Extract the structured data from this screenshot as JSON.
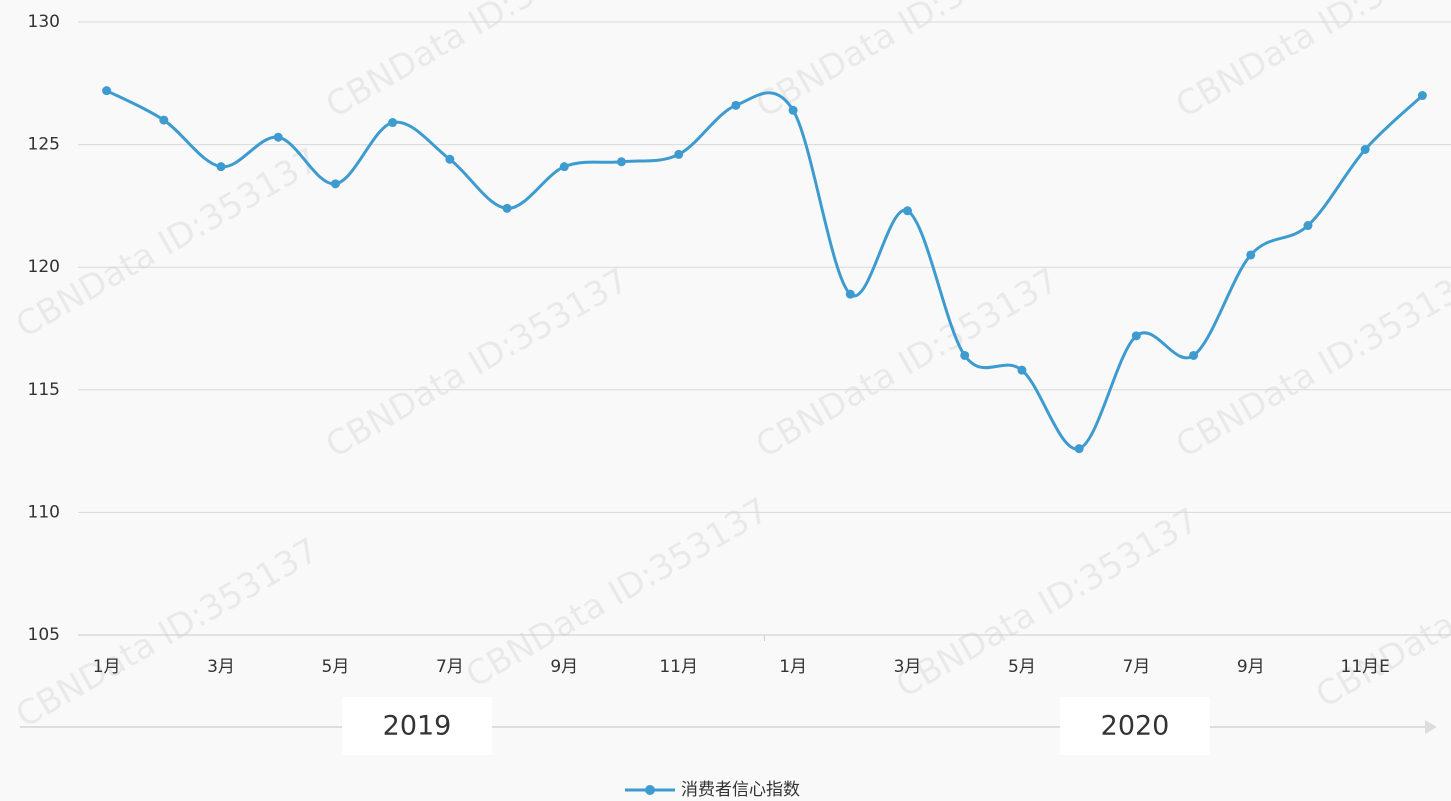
{
  "chart_data": {
    "type": "line",
    "categories": [
      "1月",
      null,
      "3月",
      null,
      "5月",
      null,
      "7月",
      null,
      "9月",
      null,
      "11月",
      null,
      "1月",
      null,
      "3月",
      null,
      "5月",
      null,
      "7月",
      null,
      "9月",
      null,
      "11月E",
      null
    ],
    "year_labels": [
      "2019",
      "2020"
    ],
    "series": [
      {
        "name": "消费者信心指数",
        "color": "#3d9bd0",
        "values": [
          127.2,
          126.0,
          124.1,
          125.3,
          123.4,
          125.9,
          124.4,
          122.4,
          124.1,
          124.3,
          124.6,
          126.6,
          126.4,
          118.9,
          122.3,
          116.4,
          115.8,
          112.6,
          117.2,
          116.4,
          120.5,
          121.7,
          124.8,
          127.0
        ]
      }
    ],
    "ylim": [
      105,
      130
    ],
    "yticks": [
      105,
      110,
      115,
      120,
      125,
      130
    ],
    "grid": true,
    "legend": "bottom",
    "watermark": "CBNData ID:353137"
  }
}
